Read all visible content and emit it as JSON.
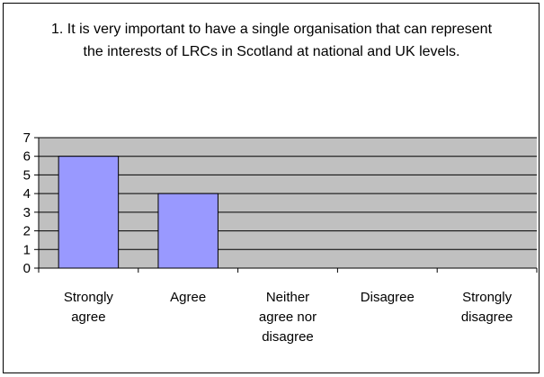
{
  "chart_data": {
    "type": "bar",
    "title": "1. It is very important to have a single organisation that can represent the interests of LRCs in Scotland at national and UK levels.",
    "categories": [
      "Strongly agree",
      "Agree",
      "Neither agree nor disagree",
      "Disagree",
      "Strongly disagree"
    ],
    "values": [
      6,
      4,
      0,
      0,
      0
    ],
    "color": "#9999ff",
    "ylim": [
      0,
      7
    ],
    "yticks": [
      0,
      1,
      2,
      3,
      4,
      5,
      6,
      7
    ],
    "grid": true
  }
}
